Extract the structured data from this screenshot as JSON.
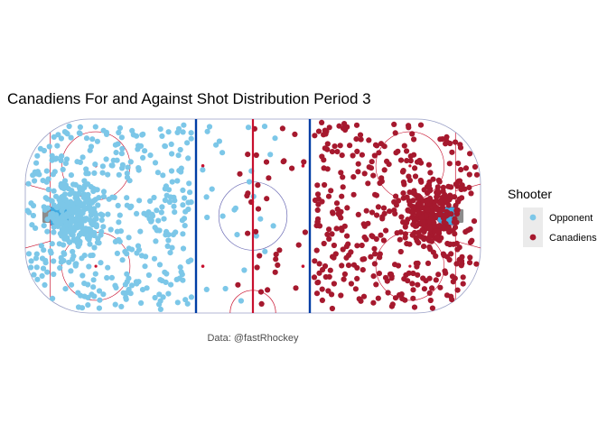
{
  "chart_data": {
    "type": "scatter",
    "title": "Canadiens For and Against Shot Distribution Period 3",
    "caption": "Data: @fastRhockey",
    "legend": {
      "title": "Shooter",
      "placement": "right",
      "entries": [
        {
          "label": "Opponent",
          "color": "#7cc7e8"
        },
        {
          "label": "Canadiens",
          "color": "#a6192e"
        }
      ]
    },
    "xlim": [
      -100,
      100
    ],
    "ylim": [
      -42.5,
      42.5
    ],
    "grid": false,
    "rink": {
      "board_color": "#9aa0c6",
      "red_line_color": "#c8102e",
      "blue_line_color": "#003da5",
      "crease_color": "#3fa9e0",
      "net_color": "#8c8c8c",
      "center_circle_color": "#6b6bb5"
    },
    "series": [
      {
        "name": "Opponent",
        "color": "#7cc7e8",
        "sides": [
          "defensive-zone",
          "neutral-zone"
        ],
        "approx_count": 640
      },
      {
        "name": "Canadiens",
        "color": "#a6192e",
        "sides": [
          "offensive-zone",
          "neutral-zone"
        ],
        "approx_count": 620
      }
    ]
  }
}
